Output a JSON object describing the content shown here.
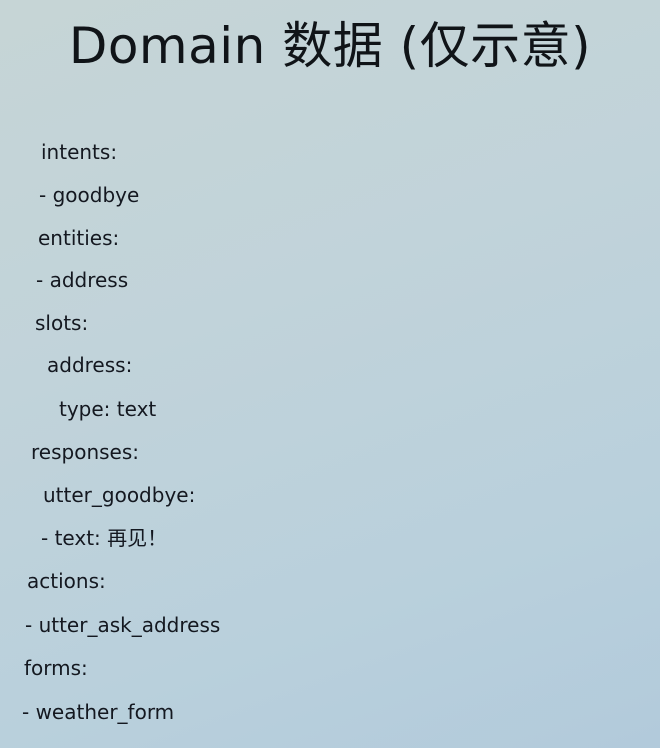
{
  "title": "Domain 数据 (仅示意)",
  "lines": [
    "intents:",
    "- goodbye",
    "entities:",
    "- address",
    "slots:",
    "address:",
    "type: text",
    "responses:",
    "utter_goodbye:",
    "- text: 再见！",
    "actions:",
    "- utter_ask_address",
    "forms:",
    "- weather_form"
  ]
}
